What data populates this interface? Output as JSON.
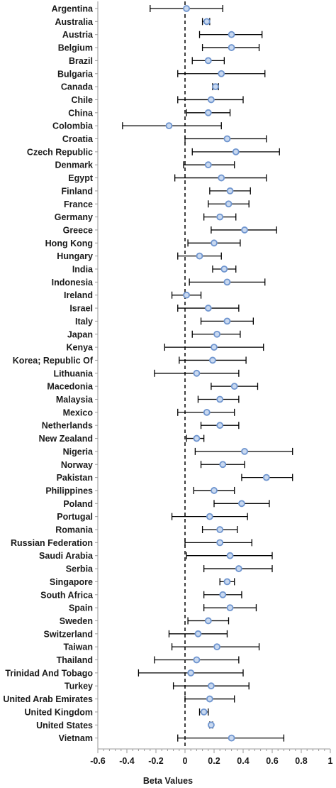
{
  "chart_data": {
    "type": "scatter",
    "subtype": "forest-plot-with-error-bars",
    "xlabel": "Beta Values",
    "xlim": [
      -0.6,
      1.0
    ],
    "xticks": [
      -0.6,
      -0.4,
      -0.2,
      0,
      0.2,
      0.4,
      0.6,
      0.8,
      1.0
    ],
    "xtick_labels": [
      "-0.6",
      "-0.4",
      "-0.2",
      "0",
      "0.2",
      "0.4",
      "0.6",
      "0.8",
      "1"
    ],
    "reference_line_x": 0,
    "reference_line_style": "dashed",
    "marker_color": "#6f95cf",
    "categories": [
      "Argentina",
      "Australia",
      "Austria",
      "Belgium",
      "Brazil",
      "Bulgaria",
      "Canada",
      "Chile",
      "China",
      "Colombia",
      "Croatia",
      "Czech Republic",
      "Denmark",
      "Egypt",
      "Finland",
      "France",
      "Germany",
      "Greece",
      "Hong Kong",
      "Hungary",
      "India",
      "Indonesia",
      "Ireland",
      "Israel",
      "Italy",
      "Japan",
      "Kenya",
      "Korea; Republic Of",
      "Lithuania",
      "Macedonia",
      "Malaysia",
      "Mexico",
      "Netherlands",
      "New Zealand",
      "Nigeria",
      "Norway",
      "Pakistan",
      "Philippines",
      "Poland",
      "Portugal",
      "Romania",
      "Russian Federation",
      "Saudi Arabia",
      "Serbia",
      "Singapore",
      "South Africa",
      "Spain",
      "Sweden",
      "Switzerland",
      "Taiwan",
      "Thailand",
      "Trinidad And Tobago",
      "Turkey",
      "United Arab Emirates",
      "United Kingdom",
      "United States",
      "Vietnam"
    ],
    "estimates": [
      0.01,
      0.15,
      0.32,
      0.32,
      0.16,
      0.25,
      0.21,
      0.18,
      0.16,
      -0.11,
      0.29,
      0.35,
      0.16,
      0.25,
      0.31,
      0.3,
      0.24,
      0.41,
      0.2,
      0.1,
      0.27,
      0.29,
      0.01,
      0.16,
      0.29,
      0.22,
      0.2,
      0.19,
      0.08,
      0.34,
      0.24,
      0.15,
      0.24,
      0.08,
      0.41,
      0.26,
      0.56,
      0.2,
      0.39,
      0.17,
      0.24,
      0.24,
      0.31,
      0.37,
      0.29,
      0.26,
      0.31,
      0.16,
      0.09,
      0.22,
      0.08,
      0.04,
      0.18,
      0.17,
      0.13,
      0.18,
      0.32
    ],
    "lower": [
      -0.24,
      0.12,
      0.1,
      0.12,
      0.05,
      -0.05,
      0.19,
      -0.05,
      0.01,
      -0.43,
      0.0,
      0.05,
      -0.01,
      -0.07,
      0.17,
      0.16,
      0.13,
      0.18,
      0.02,
      -0.05,
      0.19,
      0.03,
      -0.09,
      -0.05,
      0.11,
      0.05,
      -0.14,
      -0.04,
      -0.21,
      0.18,
      0.09,
      -0.05,
      0.11,
      0.01,
      0.07,
      0.11,
      0.39,
      0.06,
      0.2,
      -0.09,
      0.12,
      0.0,
      0.01,
      0.13,
      0.24,
      0.13,
      0.13,
      0.02,
      -0.11,
      -0.09,
      -0.21,
      -0.32,
      -0.08,
      0.0,
      0.1,
      0.17,
      -0.05
    ],
    "upper": [
      0.26,
      0.17,
      0.53,
      0.51,
      0.27,
      0.55,
      0.23,
      0.4,
      0.31,
      0.25,
      0.56,
      0.65,
      0.34,
      0.56,
      0.45,
      0.44,
      0.35,
      0.63,
      0.38,
      0.25,
      0.35,
      0.55,
      0.11,
      0.37,
      0.47,
      0.38,
      0.54,
      0.42,
      0.37,
      0.5,
      0.37,
      0.34,
      0.37,
      0.13,
      0.74,
      0.41,
      0.74,
      0.34,
      0.58,
      0.43,
      0.36,
      0.46,
      0.6,
      0.6,
      0.34,
      0.39,
      0.49,
      0.3,
      0.29,
      0.51,
      0.37,
      0.4,
      0.44,
      0.34,
      0.16,
      0.19,
      0.68
    ]
  }
}
